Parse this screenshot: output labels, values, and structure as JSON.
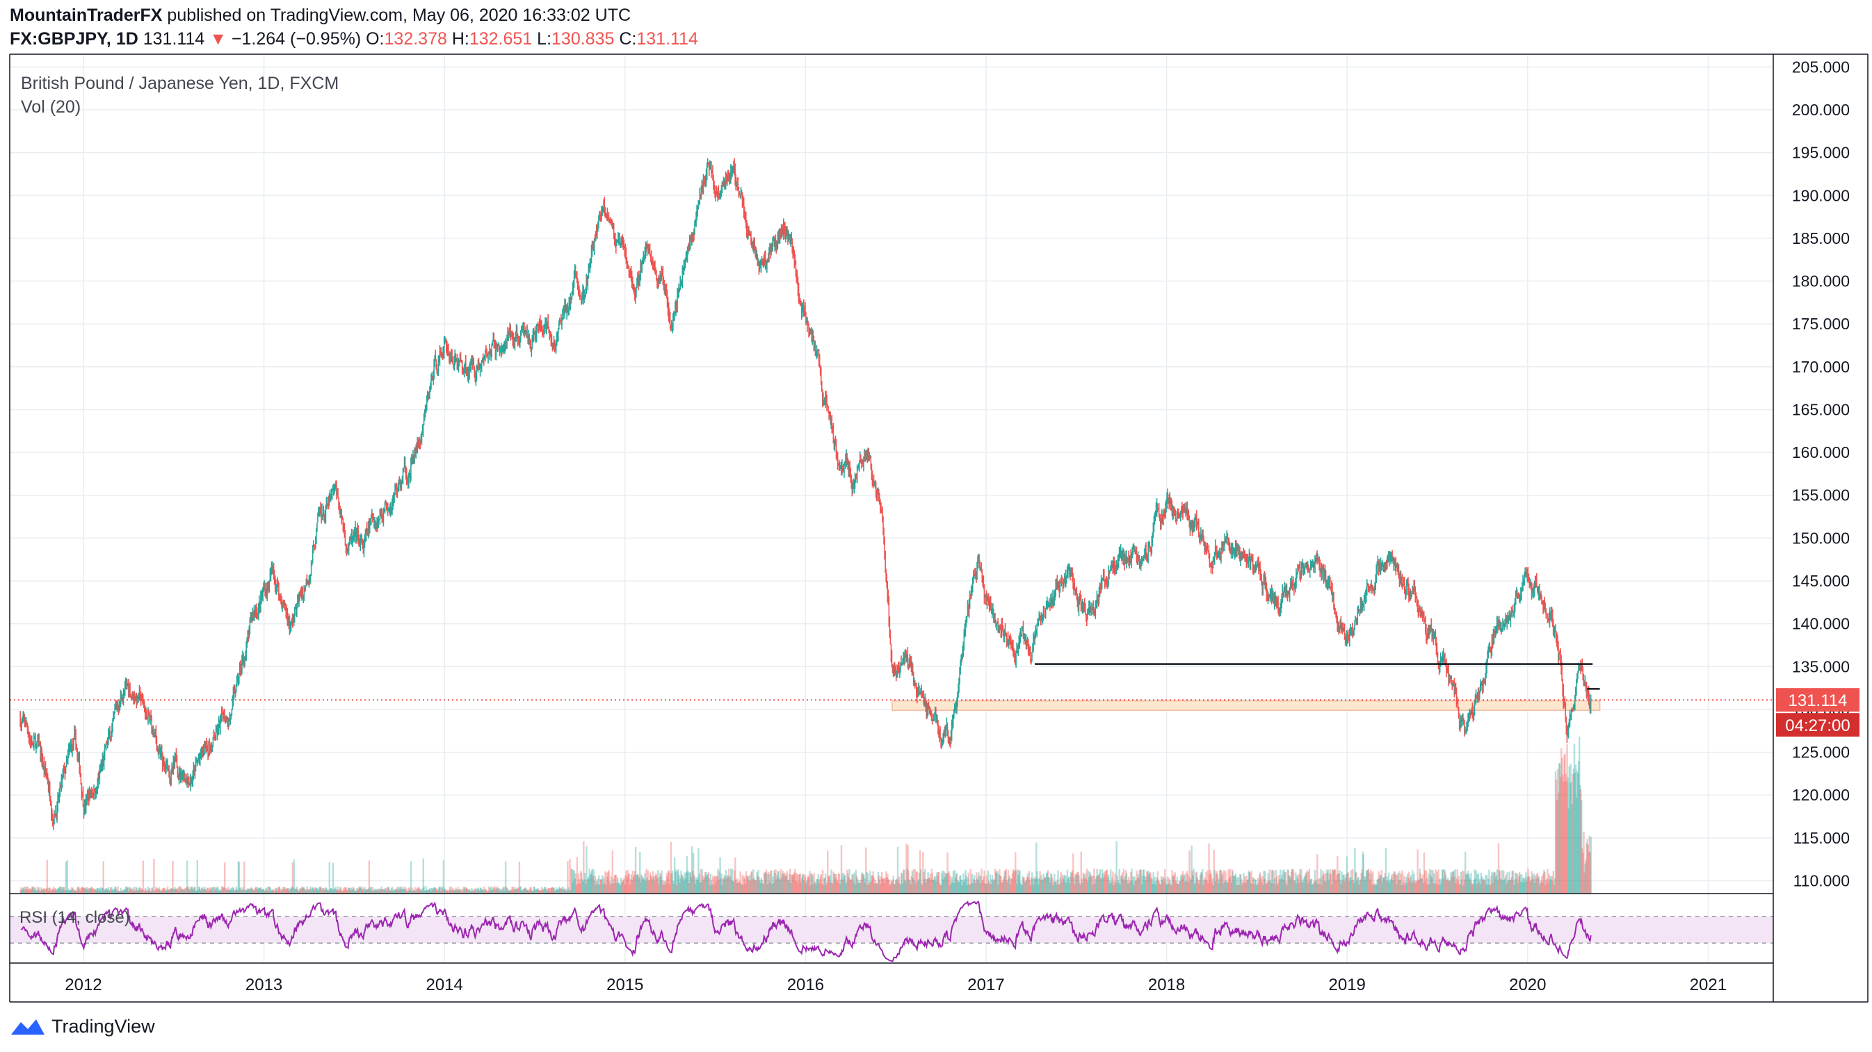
{
  "header": {
    "publisher": "MountainTraderFX",
    "published_text": "published on TradingView.com, May 06, 2020 16:33:02 UTC",
    "symbol": "FX:GBPJPY, 1D",
    "last": "131.114",
    "change": "−1.264 (−0.95%)",
    "o_label": "O:",
    "o_value": "132.378",
    "h_label": "H:",
    "h_value": "132.651",
    "l_label": "L:",
    "l_value": "130.835",
    "c_label": "C:",
    "c_value": "131.114"
  },
  "legend": {
    "title": "British Pound / Japanese Yen, 1D, FXCM",
    "vol": "Vol (20)",
    "rsi": "RSI (14, close)"
  },
  "price_label": "131.114",
  "countdown": "04:27:00",
  "footer": {
    "brand": "TradingView"
  },
  "colors": {
    "up": "#26a69a",
    "down": "#ef5350",
    "rsi": "#9c27b0",
    "rsi_band": "#f3e5f5",
    "zone_fill": "#fde8cf",
    "grid": "#e9eef2"
  },
  "chart_data": {
    "type": "candlestick",
    "symbol": "GBPJPY",
    "interval": "1D",
    "x_labels": [
      "2012",
      "2013",
      "2014",
      "2015",
      "2016",
      "2017",
      "2018",
      "2019",
      "2020",
      "2021"
    ],
    "y_ticks": [
      110,
      115,
      120,
      125,
      130,
      135,
      140,
      145,
      150,
      155,
      160,
      165,
      170,
      175,
      180,
      185,
      190,
      195,
      200,
      205
    ],
    "ylim": [
      108.5,
      206
    ],
    "price_path": [
      [
        2011.65,
        129
      ],
      [
        2011.75,
        125
      ],
      [
        2011.83,
        119
      ],
      [
        2011.9,
        122
      ],
      [
        2011.95,
        125
      ],
      [
        2012.0,
        119
      ],
      [
        2012.08,
        122
      ],
      [
        2012.15,
        126
      ],
      [
        2012.22,
        132
      ],
      [
        2012.3,
        132
      ],
      [
        2012.37,
        128
      ],
      [
        2012.45,
        122
      ],
      [
        2012.55,
        123
      ],
      [
        2012.65,
        124
      ],
      [
        2012.75,
        127
      ],
      [
        2012.85,
        132
      ],
      [
        2012.95,
        141
      ],
      [
        2013.05,
        146
      ],
      [
        2013.15,
        140
      ],
      [
        2013.22,
        144
      ],
      [
        2013.3,
        152
      ],
      [
        2013.4,
        154
      ],
      [
        2013.45,
        150
      ],
      [
        2013.55,
        148
      ],
      [
        2013.62,
        152
      ],
      [
        2013.7,
        156
      ],
      [
        2013.8,
        158
      ],
      [
        2013.88,
        162
      ],
      [
        2013.95,
        170
      ],
      [
        2014.0,
        173
      ],
      [
        2014.1,
        170
      ],
      [
        2014.2,
        171
      ],
      [
        2014.3,
        172
      ],
      [
        2014.45,
        173
      ],
      [
        2014.55,
        174
      ],
      [
        2014.6,
        171
      ],
      [
        2014.67,
        176
      ],
      [
        2014.72,
        180
      ],
      [
        2014.78,
        178
      ],
      [
        2014.85,
        186
      ],
      [
        2014.92,
        189
      ],
      [
        2014.95,
        185
      ],
      [
        2015.05,
        178
      ],
      [
        2015.12,
        184
      ],
      [
        2015.25,
        177
      ],
      [
        2015.32,
        183
      ],
      [
        2015.4,
        188
      ],
      [
        2015.46,
        194
      ],
      [
        2015.52,
        190
      ],
      [
        2015.6,
        193
      ],
      [
        2015.68,
        186
      ],
      [
        2015.75,
        182
      ],
      [
        2015.85,
        186
      ],
      [
        2015.9,
        187
      ],
      [
        2015.97,
        179
      ],
      [
        2016.05,
        172
      ],
      [
        2016.1,
        166
      ],
      [
        2016.18,
        161
      ],
      [
        2016.26,
        158
      ],
      [
        2016.35,
        160
      ],
      [
        2016.42,
        151
      ],
      [
        2016.48,
        134
      ],
      [
        2016.55,
        135
      ],
      [
        2016.62,
        132
      ],
      [
        2016.7,
        130
      ],
      [
        2016.8,
        126
      ],
      [
        2016.85,
        132
      ],
      [
        2016.9,
        140
      ],
      [
        2016.96,
        146
      ],
      [
        2017.05,
        141
      ],
      [
        2017.15,
        140
      ],
      [
        2017.25,
        136
      ],
      [
        2017.35,
        142
      ],
      [
        2017.45,
        145
      ],
      [
        2017.55,
        142
      ],
      [
        2017.65,
        146
      ],
      [
        2017.75,
        148
      ],
      [
        2017.85,
        148
      ],
      [
        2017.92,
        152
      ],
      [
        2018.0,
        153
      ],
      [
        2018.08,
        155
      ],
      [
        2018.18,
        150
      ],
      [
        2018.25,
        147
      ],
      [
        2018.32,
        150
      ],
      [
        2018.42,
        147
      ],
      [
        2018.52,
        145
      ],
      [
        2018.62,
        142
      ],
      [
        2018.72,
        148
      ],
      [
        2018.82,
        146
      ],
      [
        2018.9,
        145
      ],
      [
        2018.97,
        140
      ],
      [
        2019.0,
        138
      ],
      [
        2019.08,
        143
      ],
      [
        2019.18,
        146
      ],
      [
        2019.28,
        147
      ],
      [
        2019.35,
        143
      ],
      [
        2019.45,
        138
      ],
      [
        2019.55,
        135
      ],
      [
        2019.6,
        131
      ],
      [
        2019.65,
        128
      ],
      [
        2019.72,
        131
      ],
      [
        2019.78,
        135
      ],
      [
        2019.82,
        140
      ],
      [
        2019.9,
        141
      ],
      [
        2019.97,
        145
      ],
      [
        2020.05,
        144
      ],
      [
        2020.12,
        143
      ],
      [
        2020.18,
        136
      ],
      [
        2020.22,
        127
      ],
      [
        2020.25,
        130
      ],
      [
        2020.28,
        134
      ],
      [
        2020.32,
        133
      ],
      [
        2020.35,
        131.1
      ]
    ],
    "last_price": 131.114,
    "annotations": {
      "resistance_line": {
        "from_year": 2017.27,
        "to_year": 2020.36,
        "price": 135.3
      },
      "short_line": {
        "from_year": 2020.33,
        "to_year": 2020.4,
        "price": 132.4
      },
      "support_zone": {
        "from_year": 2016.48,
        "to_year": 2020.4,
        "low": 129.9,
        "high": 131.0
      },
      "last_price_line": 131.114
    },
    "volume_panel": {
      "name": "Vol (20)"
    },
    "rsi_panel": {
      "name": "RSI (14, close)",
      "upper": 70,
      "lower": 30
    }
  }
}
